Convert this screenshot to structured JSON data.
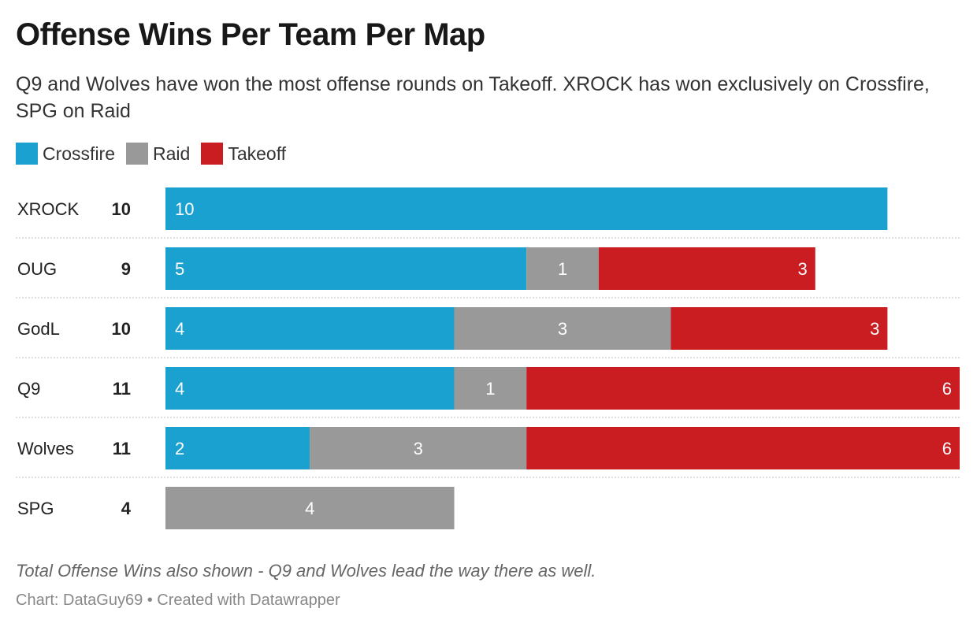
{
  "title": "Offense Wins Per Team Per Map",
  "subtitle": "Q9 and Wolves have won the most offense rounds on Takeoff. XROCK has won exclusively on Crossfire, SPG on Raid",
  "notes": "Total Offense Wins also shown - Q9 and Wolves lead the way there as well.",
  "source": "Chart: DataGuy69 • Created with Datawrapper",
  "colors": {
    "Crossfire": "#1aa1cf",
    "Raid": "#999999",
    "Takeoff": "#c91d21"
  },
  "chart_data": {
    "type": "bar",
    "orientation": "horizontal",
    "stacked": true,
    "legend_position": "top-left",
    "xlim": [
      0,
      11
    ],
    "categories": [
      "XROCK",
      "OUG",
      "GodL",
      "Q9",
      "Wolves",
      "SPG"
    ],
    "totals": [
      10,
      9,
      10,
      11,
      11,
      4
    ],
    "series": [
      {
        "name": "Crossfire",
        "values": [
          10,
          5,
          4,
          4,
          2,
          0
        ]
      },
      {
        "name": "Raid",
        "values": [
          0,
          1,
          3,
          1,
          3,
          4
        ]
      },
      {
        "name": "Takeoff",
        "values": [
          0,
          3,
          3,
          6,
          6,
          0
        ]
      }
    ]
  }
}
